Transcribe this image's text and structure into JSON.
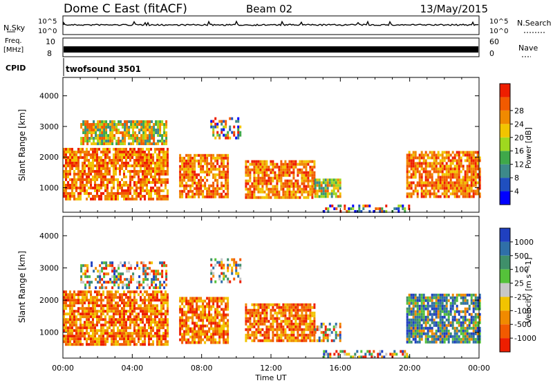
{
  "header": {
    "station": "Dome C East (fitACF)",
    "beam": "Beam 02",
    "date": "13/May/2015"
  },
  "nsky_panel": {
    "left_label": "N.Sky",
    "right_label": "N.Search",
    "ticks": [
      "10^5",
      "10^0"
    ],
    "right_ticks": [
      "10^5",
      "10^0"
    ]
  },
  "freq_panel": {
    "left_label_1": "Freq.",
    "left_label_2": "[MHz]",
    "left_ticks": [
      "10",
      "8"
    ],
    "right_label": "Nave",
    "right_ticks": [
      "60",
      "0"
    ]
  },
  "cpid": {
    "label": "CPID",
    "value": "twofsound 3501"
  },
  "chart_data": [
    {
      "type": "heatmap",
      "name": "Power panel",
      "xlabel": "",
      "ylabel": "Slant Range [km]",
      "ylim": [
        200,
        4600
      ],
      "y_ticks": [
        1000,
        2000,
        3000,
        4000
      ],
      "x_ticks_hours": [
        0,
        4,
        8,
        12,
        16,
        20,
        24
      ],
      "colorbar": {
        "label": "Power [dB]",
        "ticks": [
          4,
          8,
          12,
          16,
          20,
          24,
          28
        ],
        "tick_labels": [
          "4",
          "8",
          "12",
          "16",
          "20",
          "24",
          "28"
        ],
        "colors": [
          "#0000ff",
          "#1f4fbf",
          "#3d8a8a",
          "#3fa84a",
          "#9fd81f",
          "#f2c400",
          "#f08a00",
          "#f25a00",
          "#ee1e00"
        ]
      },
      "echo_regions": [
        {
          "t0": 0.0,
          "t1": 6.0,
          "r0": 600,
          "r1": 2300,
          "level": "high"
        },
        {
          "t0": 1.0,
          "t1": 6.0,
          "r0": 2400,
          "r1": 3200,
          "level": "mid"
        },
        {
          "t0": 6.7,
          "t1": 9.5,
          "r0": 700,
          "r1": 2100,
          "level": "high"
        },
        {
          "t0": 8.5,
          "t1": 10.2,
          "r0": 2600,
          "r1": 3300,
          "level": "low"
        },
        {
          "t0": 10.5,
          "t1": 14.5,
          "r0": 700,
          "r1": 1900,
          "level": "high"
        },
        {
          "t0": 14.5,
          "t1": 16.0,
          "r0": 700,
          "r1": 1300,
          "level": "mid"
        },
        {
          "t0": 15.0,
          "t1": 20.0,
          "r0": 250,
          "r1": 450,
          "level": "low"
        },
        {
          "t0": 19.8,
          "t1": 24.0,
          "r0": 700,
          "r1": 2200,
          "level": "high"
        }
      ]
    },
    {
      "type": "heatmap",
      "name": "Velocity panel",
      "xlabel": "Time UT",
      "ylabel": "Slant Range [km]",
      "ylim": [
        200,
        4600
      ],
      "y_ticks": [
        1000,
        2000,
        3000,
        4000
      ],
      "x_ticks_hours": [
        0,
        4,
        8,
        12,
        16,
        20,
        24
      ],
      "x_tick_labels": [
        "00:00",
        "04:00",
        "08:00",
        "12:00",
        "16:00",
        "20:00",
        "00:00"
      ],
      "colorbar": {
        "label": "Velocity [m s^-1]",
        "tick_labels": [
          "1000",
          "500",
          "100",
          "25",
          "-25",
          "-100",
          "-500",
          "-1000"
        ],
        "colors": [
          "#2040c0",
          "#2f6fa8",
          "#3f8f6a",
          "#55c23a",
          "#c8c8c8",
          "#f2c400",
          "#f08a00",
          "#f25a00",
          "#ee1e00"
        ]
      },
      "echo_regions": [
        {
          "t0": 0.0,
          "t1": 6.0,
          "r0": 600,
          "r1": 2300,
          "level": "neg"
        },
        {
          "t0": 1.0,
          "t1": 6.0,
          "r0": 2400,
          "r1": 3200,
          "level": "mix"
        },
        {
          "t0": 6.7,
          "t1": 9.5,
          "r0": 700,
          "r1": 2100,
          "level": "neg"
        },
        {
          "t0": 8.5,
          "t1": 10.2,
          "r0": 2600,
          "r1": 3300,
          "level": "mix"
        },
        {
          "t0": 10.5,
          "t1": 14.5,
          "r0": 700,
          "r1": 1900,
          "level": "neg"
        },
        {
          "t0": 14.5,
          "t1": 16.0,
          "r0": 700,
          "r1": 1300,
          "level": "mix"
        },
        {
          "t0": 15.0,
          "t1": 20.0,
          "r0": 250,
          "r1": 450,
          "level": "mix"
        },
        {
          "t0": 19.8,
          "t1": 24.0,
          "r0": 700,
          "r1": 2200,
          "level": "pos"
        }
      ]
    }
  ]
}
